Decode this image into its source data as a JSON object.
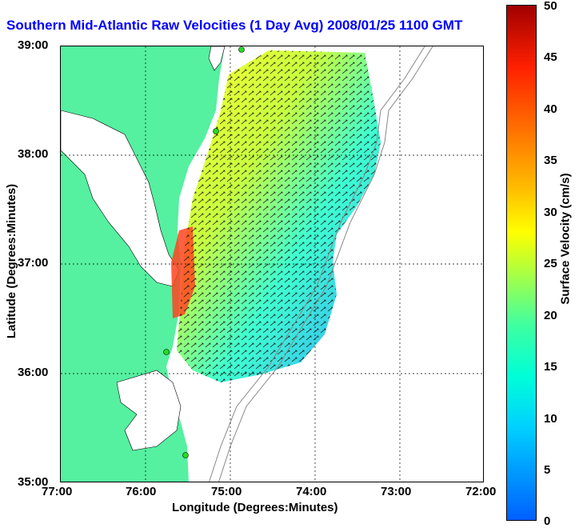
{
  "title": "Southern Mid-Atlantic Raw Velocities (1 Day Avg) 2008/01/25 1100 GMT",
  "axes": {
    "xlabel": "Longitude (Degrees:Minutes)",
    "ylabel": "Latitude (Degrees:Minutes)",
    "xticks": [
      "77:00",
      "76:00",
      "75:00",
      "74:00",
      "73:00",
      "72:00"
    ],
    "yticks": [
      "39:00",
      "38:00",
      "37:00",
      "36:00",
      "35:00"
    ]
  },
  "colorbar": {
    "label": "Surface Velocity (cm/s)",
    "ticks": [
      "0",
      "5",
      "10",
      "15",
      "20",
      "25",
      "30",
      "35",
      "40",
      "45",
      "50"
    ],
    "min": 0,
    "max": 50
  },
  "colors": {
    "land": "#55f0a0",
    "title": "#0000ff",
    "station": "#22dd22"
  }
}
